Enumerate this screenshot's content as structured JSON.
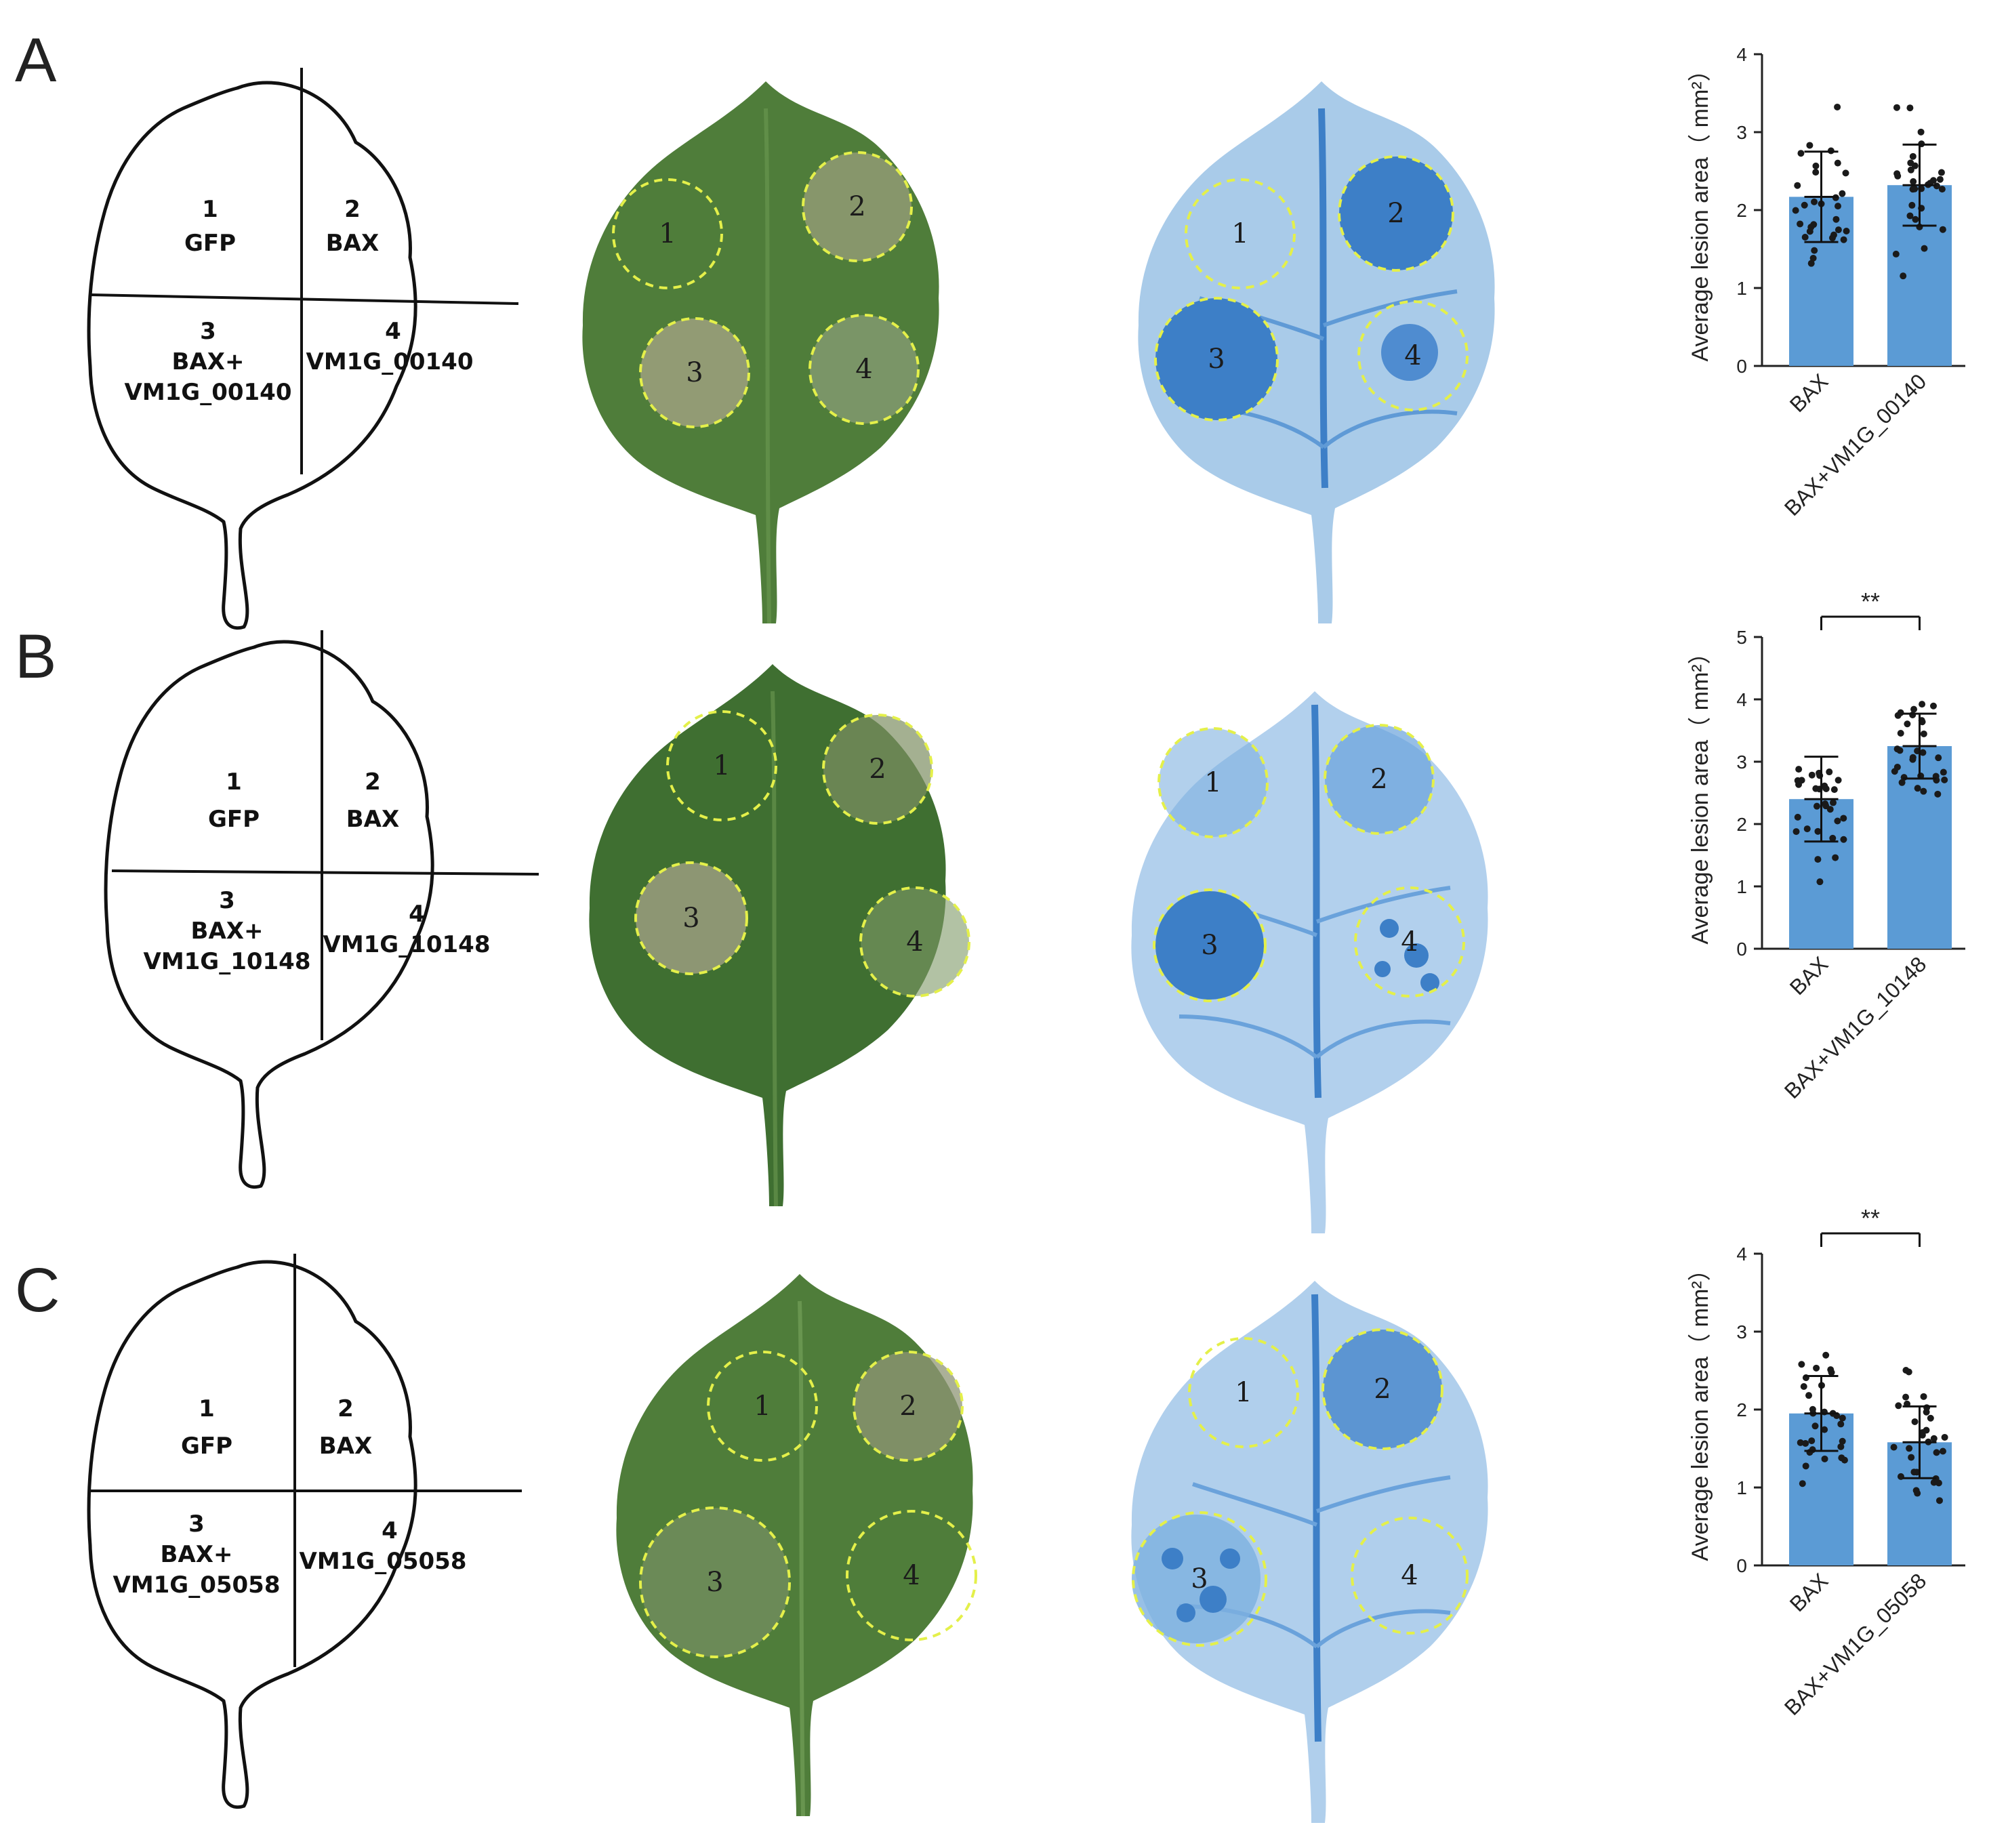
{
  "panels": [
    {
      "letter": "A",
      "diagram": {
        "q1_num": "1",
        "q1_label": "GFP",
        "q2_num": "2",
        "q2_label": "BAX",
        "q3_num": "3",
        "q3_label1": "BAX+",
        "q3_label2": "VM1G_00140",
        "q4_num": "4",
        "q4_label": "VM1G_00140"
      },
      "spots": [
        "1",
        "2",
        "3",
        "4"
      ]
    },
    {
      "letter": "B",
      "diagram": {
        "q1_num": "1",
        "q1_label": "GFP",
        "q2_num": "2",
        "q2_label": "BAX",
        "q3_num": "3",
        "q3_label1": "BAX+",
        "q3_label2": "VM1G_10148",
        "q4_num": "4",
        "q4_label": "VM1G_10148"
      },
      "spots": [
        "1",
        "2",
        "3",
        "4"
      ]
    },
    {
      "letter": "C",
      "diagram": {
        "q1_num": "1",
        "q1_label": "GFP",
        "q2_num": "2",
        "q2_label": "BAX",
        "q3_num": "3",
        "q3_label1": "BAX+",
        "q3_label2": "VM1G_05058",
        "q4_num": "4",
        "q4_label": "VM1G_05058"
      },
      "spots": [
        "1",
        "2",
        "3",
        "4"
      ]
    }
  ],
  "colors": {
    "bar": "#5b9bd5",
    "green_leaf": "#4f7d3a",
    "stained_leaf": "#a9cbe9",
    "stain_dark": "#3d7fc7",
    "circle": "#e4f04a"
  },
  "chart_data": [
    {
      "type": "bar",
      "ylabel": "Average lesion area（ mm²）",
      "ylim": [
        0,
        4
      ],
      "yticks": [
        "0",
        "1",
        "2",
        "3",
        "4"
      ],
      "categories": [
        "BAX",
        "BAX+VM1G_00140"
      ],
      "values": [
        2.17,
        2.32
      ],
      "error": [
        0.58,
        0.52
      ],
      "significance": ""
    },
    {
      "type": "bar",
      "ylabel": "Average lesion area（ mm²）",
      "ylim": [
        0,
        5
      ],
      "yticks": [
        "0",
        "1",
        "2",
        "3",
        "4",
        "5"
      ],
      "categories": [
        "BAX",
        "BAX+VM1G_10148"
      ],
      "values": [
        2.4,
        3.25
      ],
      "error": [
        0.68,
        0.52
      ],
      "significance": "**"
    },
    {
      "type": "bar",
      "ylabel": "Average lesion area（ mm²）",
      "ylim": [
        0,
        4
      ],
      "yticks": [
        "0",
        "1",
        "2",
        "3",
        "4"
      ],
      "categories": [
        "BAX",
        "BAX+VM1G_05058"
      ],
      "values": [
        1.95,
        1.58
      ],
      "error": [
        0.48,
        0.46
      ],
      "significance": "**"
    }
  ]
}
